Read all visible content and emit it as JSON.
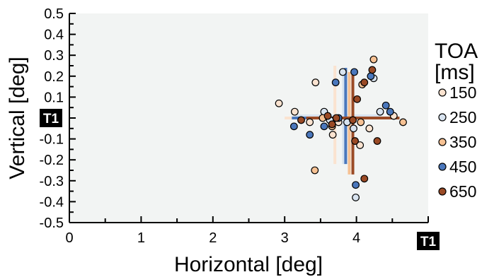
{
  "chart_data": {
    "type": "scatter",
    "xlabel": "Horizontal [deg]",
    "ylabel": "Vertical [deg]",
    "xlim": [
      0,
      5
    ],
    "ylim": [
      -0.5,
      0.5
    ],
    "xticks": [
      "0",
      "1",
      "2",
      "3",
      "4",
      "5"
    ],
    "yticks": [
      "0.5",
      "0.4",
      "0.3",
      "0.2",
      "0.1",
      "0",
      "-0.1",
      "-0.2",
      "-0.3",
      "-0.4",
      "-0.5"
    ],
    "target_marker": "T1",
    "legend": {
      "title_line1": "TOA",
      "title_line2": "[ms]",
      "placement": "right"
    },
    "grid": false,
    "background": "#f2f4f3",
    "series": [
      {
        "name": "150",
        "color": "#fbe3d0",
        "points": [
          [
            2.92,
            0.07
          ],
          [
            3.14,
            0.03
          ],
          [
            3.43,
            0.17
          ],
          [
            3.35,
            -0.02
          ],
          [
            3.67,
            -0.08
          ],
          [
            3.75,
            -0.02
          ],
          [
            4.18,
            -0.05
          ],
          [
            4.52,
            0.01
          ],
          [
            4.05,
            -0.13
          ]
        ],
        "mean": [
          3.7,
          0.0
        ],
        "err_x": [
          3.0,
          4.3
        ],
        "err_y": [
          -0.22,
          0.25
        ]
      },
      {
        "name": "250",
        "color": "#d8e3ef",
        "points": [
          [
            3.81,
            0.22
          ],
          [
            4.24,
            0.19
          ],
          [
            3.55,
            0.03
          ],
          [
            3.63,
            -0.01
          ],
          [
            3.87,
            -0.02
          ],
          [
            3.96,
            -0.05
          ],
          [
            4.33,
            0.03
          ],
          [
            3.99,
            -0.38
          ]
        ],
        "mean": [
          3.82,
          0.01
        ],
        "err_x": [
          3.14,
          4.35
        ],
        "err_y": [
          -0.22,
          0.24
        ]
      },
      {
        "name": "350",
        "color": "#f6c193",
        "points": [
          [
            4.24,
            0.28
          ],
          [
            4.08,
            0.16
          ],
          [
            3.42,
            -0.25
          ],
          [
            4.06,
            -0.02
          ],
          [
            4.65,
            -0.02
          ],
          [
            3.53,
            0.0
          ],
          [
            3.66,
            -0.04
          ]
        ],
        "mean": [
          3.9,
          0.0
        ],
        "err_x": [
          3.2,
          4.57
        ],
        "err_y": [
          -0.27,
          0.22
        ]
      },
      {
        "name": "450",
        "color": "#4a77bc",
        "points": [
          [
            3.71,
            0.17
          ],
          [
            3.97,
            0.22
          ],
          [
            4.2,
            0.2
          ],
          [
            4.41,
            0.06
          ],
          [
            4.47,
            0.03
          ],
          [
            3.13,
            -0.04
          ],
          [
            3.35,
            -0.08
          ],
          [
            3.55,
            -0.04
          ],
          [
            3.75,
            0.0
          ],
          [
            3.99,
            -0.32
          ]
        ],
        "mean": [
          3.85,
          0.0
        ],
        "err_x": [
          3.1,
          4.45
        ],
        "err_y": [
          -0.22,
          0.24
        ]
      },
      {
        "name": "650",
        "color": "#9a4a25",
        "points": [
          [
            4.22,
            0.23
          ],
          [
            4.11,
            0.17
          ],
          [
            3.6,
            0.01
          ],
          [
            3.72,
            0.0
          ],
          [
            3.66,
            -0.03
          ],
          [
            3.23,
            -0.01
          ],
          [
            4.01,
            0.09
          ],
          [
            3.98,
            -0.11
          ],
          [
            4.29,
            -0.11
          ],
          [
            4.11,
            -0.29
          ],
          [
            3.95,
            -0.01
          ]
        ],
        "mean": [
          3.95,
          0.0
        ],
        "err_x": [
          3.3,
          4.6
        ],
        "err_y": [
          -0.27,
          0.22
        ]
      }
    ]
  }
}
